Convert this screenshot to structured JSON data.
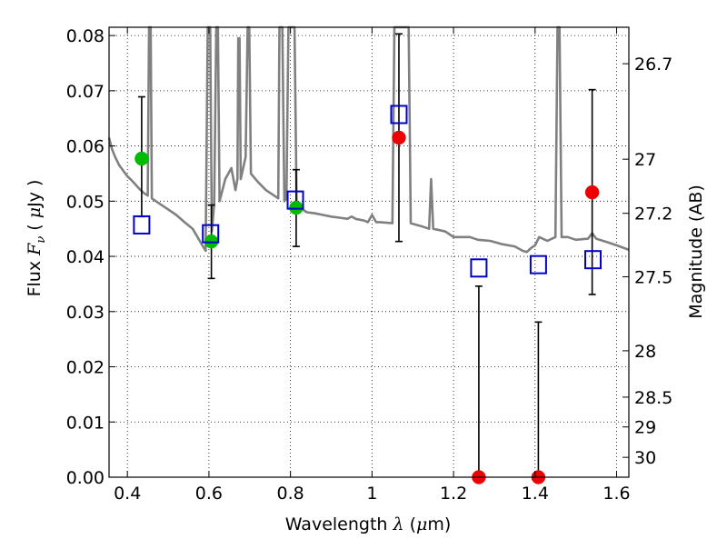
{
  "chart_data": {
    "type": "scatter",
    "xlabel": "Wavelength  λ (μm)",
    "ylabel": "Flux  F_ν  ( μJy )",
    "ylabel_parts": {
      "prefix": "Flux  ",
      "sym": "F",
      "sub": "ν",
      "mid": "  ( ",
      "mu": "μ",
      "suffix": "Jy )"
    },
    "xlabel_parts": {
      "prefix": "Wavelength  ",
      "lam": "λ",
      "mid": " (",
      "mu": "μ",
      "suffix": "m)"
    },
    "y2label": "Magnitude (AB)",
    "xlim": [
      0.355,
      1.63
    ],
    "ylim": [
      0.0,
      0.0815
    ],
    "grid": true,
    "x_ticks": [
      {
        "v": 0.4,
        "label": "0.4"
      },
      {
        "v": 0.6,
        "label": "0.6"
      },
      {
        "v": 0.8,
        "label": "0.8"
      },
      {
        "v": 1.0,
        "label": "1"
      },
      {
        "v": 1.2,
        "label": "1.2"
      },
      {
        "v": 1.4,
        "label": "1.4"
      },
      {
        "v": 1.6,
        "label": "1.6"
      }
    ],
    "y_ticks": [
      {
        "v": 0.0,
        "label": "0.00"
      },
      {
        "v": 0.01,
        "label": "0.01"
      },
      {
        "v": 0.02,
        "label": "0.02"
      },
      {
        "v": 0.03,
        "label": "0.03"
      },
      {
        "v": 0.04,
        "label": "0.04"
      },
      {
        "v": 0.05,
        "label": "0.05"
      },
      {
        "v": 0.06,
        "label": "0.06"
      },
      {
        "v": 0.07,
        "label": "0.07"
      },
      {
        "v": 0.08,
        "label": "0.08"
      }
    ],
    "mag_ticks": [
      {
        "flux": 0.0749,
        "label": "26.7"
      },
      {
        "flux": 0.0576,
        "label": "27"
      },
      {
        "flux": 0.0478,
        "label": "27.2"
      },
      {
        "flux": 0.0363,
        "label": "27.5"
      },
      {
        "flux": 0.0229,
        "label": "28"
      },
      {
        "flux": 0.0145,
        "label": "28.5"
      },
      {
        "flux": 0.0091,
        "label": "29"
      },
      {
        "flux": 0.0036,
        "label": "30"
      }
    ],
    "template_spectrum": {
      "color": "#808080",
      "points": [
        [
          0.355,
          0.0615
        ],
        [
          0.362,
          0.0595
        ],
        [
          0.37,
          0.058
        ],
        [
          0.38,
          0.0565
        ],
        [
          0.39,
          0.0555
        ],
        [
          0.4,
          0.0545
        ],
        [
          0.41,
          0.0538
        ],
        [
          0.42,
          0.053
        ],
        [
          0.43,
          0.0522
        ],
        [
          0.44,
          0.0515
        ],
        [
          0.45,
          0.051
        ],
        [
          0.453,
          0.0815
        ],
        [
          0.457,
          0.0815
        ],
        [
          0.46,
          0.0505
        ],
        [
          0.48,
          0.0495
        ],
        [
          0.5,
          0.0485
        ],
        [
          0.52,
          0.0475
        ],
        [
          0.54,
          0.0462
        ],
        [
          0.56,
          0.045
        ],
        [
          0.58,
          0.0425
        ],
        [
          0.592,
          0.041
        ],
        [
          0.597,
          0.0815
        ],
        [
          0.603,
          0.0815
        ],
        [
          0.607,
          0.0445
        ],
        [
          0.613,
          0.0495
        ],
        [
          0.618,
          0.0815
        ],
        [
          0.622,
          0.0815
        ],
        [
          0.626,
          0.05
        ],
        [
          0.64,
          0.054
        ],
        [
          0.655,
          0.056
        ],
        [
          0.665,
          0.052
        ],
        [
          0.67,
          0.054
        ],
        [
          0.672,
          0.0795
        ],
        [
          0.675,
          0.0795
        ],
        [
          0.678,
          0.054
        ],
        [
          0.69,
          0.058
        ],
        [
          0.695,
          0.0815
        ],
        [
          0.699,
          0.0815
        ],
        [
          0.703,
          0.055
        ],
        [
          0.72,
          0.0535
        ],
        [
          0.74,
          0.052
        ],
        [
          0.76,
          0.051
        ],
        [
          0.77,
          0.0505
        ],
        [
          0.773,
          0.0815
        ],
        [
          0.78,
          0.0815
        ],
        [
          0.785,
          0.05
        ],
        [
          0.79,
          0.0505
        ],
        [
          0.795,
          0.0815
        ],
        [
          0.8,
          0.0815
        ],
        [
          0.805,
          0.0815
        ],
        [
          0.81,
          0.0815
        ],
        [
          0.815,
          0.0495
        ],
        [
          0.82,
          0.049
        ],
        [
          0.84,
          0.048
        ],
        [
          0.86,
          0.0478
        ],
        [
          0.88,
          0.0475
        ],
        [
          0.9,
          0.0472
        ],
        [
          0.92,
          0.047
        ],
        [
          0.94,
          0.0468
        ],
        [
          0.95,
          0.0472
        ],
        [
          0.96,
          0.0468
        ],
        [
          0.98,
          0.0465
        ],
        [
          0.99,
          0.0462
        ],
        [
          1.0,
          0.0475
        ],
        [
          1.01,
          0.0462
        ],
        [
          1.02,
          0.0462
        ],
        [
          1.05,
          0.046
        ],
        [
          1.055,
          0.0815
        ],
        [
          1.065,
          0.0815
        ],
        [
          1.07,
          0.0815
        ],
        [
          1.09,
          0.0815
        ],
        [
          1.095,
          0.046
        ],
        [
          1.12,
          0.0455
        ],
        [
          1.14,
          0.045
        ],
        [
          1.145,
          0.054
        ],
        [
          1.15,
          0.045
        ],
        [
          1.18,
          0.0445
        ],
        [
          1.2,
          0.0435
        ],
        [
          1.24,
          0.0435
        ],
        [
          1.26,
          0.043
        ],
        [
          1.29,
          0.0428
        ],
        [
          1.32,
          0.0422
        ],
        [
          1.35,
          0.0418
        ],
        [
          1.37,
          0.041
        ],
        [
          1.38,
          0.0408
        ],
        [
          1.39,
          0.0415
        ],
        [
          1.4,
          0.042
        ],
        [
          1.41,
          0.0435
        ],
        [
          1.43,
          0.0428
        ],
        [
          1.45,
          0.0435
        ],
        [
          1.455,
          0.0815
        ],
        [
          1.46,
          0.0815
        ],
        [
          1.465,
          0.0435
        ],
        [
          1.48,
          0.0435
        ],
        [
          1.5,
          0.043
        ],
        [
          1.53,
          0.0432
        ],
        [
          1.54,
          0.0442
        ],
        [
          1.55,
          0.0432
        ],
        [
          1.58,
          0.0425
        ],
        [
          1.6,
          0.042
        ],
        [
          1.63,
          0.0412
        ]
      ]
    },
    "series": [
      {
        "marker": "circle",
        "color": "#00bb00",
        "points": [
          {
            "x": 0.435,
            "y": 0.0577,
            "err": [
              0.0472,
              0.0689
            ]
          },
          {
            "x": 0.606,
            "y": 0.0427,
            "err": [
              0.036,
              0.0493
            ]
          },
          {
            "x": 0.814,
            "y": 0.0488,
            "err": [
              0.0418,
              0.0557
            ]
          }
        ]
      },
      {
        "marker": "circle",
        "color": "#ee0000",
        "points": [
          {
            "x": 1.066,
            "y": 0.0615,
            "err": [
              0.0427,
              0.0803
            ]
          },
          {
            "x": 1.262,
            "y": 0.0,
            "err": [
              0.0,
              0.0346
            ]
          },
          {
            "x": 1.408,
            "y": 0.0,
            "err": [
              0.0,
              0.0281
            ]
          },
          {
            "x": 1.54,
            "y": 0.0516,
            "err": [
              0.0331,
              0.0702
            ]
          }
        ]
      },
      {
        "marker": "square",
        "color": "#0000cc",
        "points": [
          {
            "x": 0.435,
            "y": 0.0457
          },
          {
            "x": 0.604,
            "y": 0.0441
          },
          {
            "x": 0.812,
            "y": 0.0502
          },
          {
            "x": 1.066,
            "y": 0.0657
          },
          {
            "x": 1.262,
            "y": 0.0379
          },
          {
            "x": 1.408,
            "y": 0.0385
          },
          {
            "x": 1.542,
            "y": 0.0394
          }
        ]
      }
    ]
  }
}
